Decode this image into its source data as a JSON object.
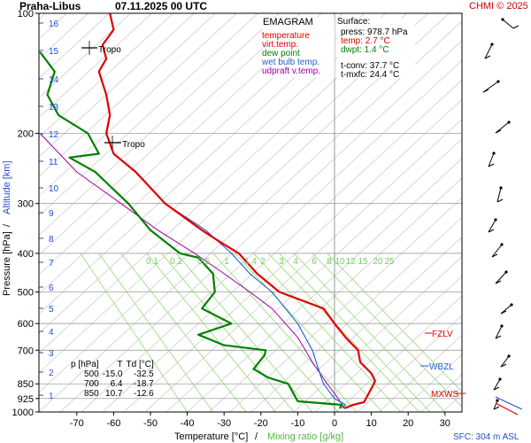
{
  "header": {
    "station": "Praha-Libus",
    "datetime": "07.11.2025 00 UTC",
    "copyright": "CHMI © 2025"
  },
  "legend": {
    "title": "EMAGRAM",
    "items": [
      {
        "label": "temperature",
        "color": "#e00000"
      },
      {
        "label": "virt.temp.",
        "color": "#e00000"
      },
      {
        "label": "dew point",
        "color": "#008000"
      },
      {
        "label": "wet bulb temp.",
        "color": "#1f5fd0"
      },
      {
        "label": "udpraft v.temp.",
        "color": "#a000a0"
      }
    ]
  },
  "surface": {
    "title": "Surface:",
    "press": "press: 978.7 hPa",
    "temp": "temp: 2.7 °C",
    "dwpt": "dwpt: 1.4 °C",
    "tconv": "t-conv: 37.7 °C",
    "tmxfc": "t-mxfc: 24.4 °C"
  },
  "level_table": {
    "headers": [
      "p [hPa]",
      "T",
      "Td [°C]"
    ],
    "rows": [
      [
        "500",
        "-15.0",
        "-32.5"
      ],
      [
        "700",
        "6.4",
        "-18.7"
      ],
      [
        "850",
        "10.7",
        "-12.6"
      ]
    ]
  },
  "markers": {
    "tropo1": "Tropo",
    "tropo2": "Tropo",
    "fzlv": "FZLV",
    "wbzl": "WBZL",
    "mxws": "MXWS"
  },
  "footer": {
    "xlabel_temp": "Temperature [°C]",
    "xlabel_sep": " / ",
    "xlabel_mix": "Mixing ratio [g/kg]",
    "sfc": "SFC: 304 m ASL"
  },
  "axis_labels": {
    "ylabel_pressure": "Pressure [hPa]",
    "ylabel_sep": " / ",
    "ylabel_alt": "Altitude [km]"
  },
  "colors": {
    "temperature": "#e00000",
    "dewpoint": "#008000",
    "wetbulb": "#1f5fd0",
    "parcel": "#a000a0",
    "mixing": "#7ed36b",
    "altitude": "#1f4fd0",
    "header_right": "#cc0000"
  },
  "chart_data": {
    "type": "line",
    "title": "Praha-Libus 07.11.2025 00 UTC",
    "xlabel": "Temperature [°C] / Mixing ratio [g/kg]",
    "ylabel": "Pressure [hPa] / Altitude [km]",
    "xlim": [
      -80,
      30
    ],
    "ylim": [
      1000,
      100
    ],
    "yscale": "log",
    "x_ticks": [
      -70,
      -60,
      -50,
      -40,
      -30,
      -20,
      -10,
      0,
      10,
      20,
      30
    ],
    "y_ticks": [
      100,
      200,
      300,
      400,
      500,
      600,
      700,
      850,
      925,
      1000
    ],
    "altitude_ticks_km": [
      1,
      2,
      3,
      4,
      5,
      6,
      7,
      8,
      9,
      10,
      11,
      12,
      13,
      14,
      15,
      16
    ],
    "mixing_ratio_labels": [
      "0.1",
      "0.2",
      "0.5",
      "1",
      "1.4",
      "2",
      "3",
      "4",
      "6",
      "8",
      "10",
      "12",
      "15",
      "20",
      "25"
    ],
    "series": [
      {
        "name": "temperature",
        "points": [
          [
            2.7,
            978.7
          ],
          [
            5,
            960
          ],
          [
            8,
            945
          ],
          [
            10.7,
            850
          ],
          [
            11,
            835
          ],
          [
            10,
            800
          ],
          [
            7,
            750
          ],
          [
            6.4,
            700
          ],
          [
            3,
            650
          ],
          [
            0,
            600
          ],
          [
            -3,
            550
          ],
          [
            -15,
            500
          ],
          [
            -21,
            450
          ],
          [
            -26,
            400
          ],
          [
            -31,
            375
          ],
          [
            -36,
            350
          ],
          [
            -46,
            300
          ],
          [
            -54,
            250
          ],
          [
            -60,
            225
          ],
          [
            -62,
            200
          ],
          [
            -61,
            180
          ],
          [
            -62,
            160
          ],
          [
            -64,
            140
          ],
          [
            -62,
            130
          ],
          [
            -63,
            120
          ],
          [
            -60,
            110
          ],
          [
            -61,
            100
          ]
        ]
      },
      {
        "name": "dew point",
        "points": [
          [
            1.4,
            978.7
          ],
          [
            2,
            960
          ],
          [
            -10,
            940
          ],
          [
            -12.6,
            850
          ],
          [
            -18,
            820
          ],
          [
            -22,
            780
          ],
          [
            -19,
            720
          ],
          [
            -18.7,
            700
          ],
          [
            -30,
            680
          ],
          [
            -37,
            640
          ],
          [
            -28,
            600
          ],
          [
            -36,
            550
          ],
          [
            -32.5,
            500
          ],
          [
            -33,
            450
          ],
          [
            -37,
            410
          ],
          [
            -42,
            400
          ],
          [
            -50,
            350
          ],
          [
            -56,
            300
          ],
          [
            -65,
            250
          ],
          [
            -72,
            230
          ],
          [
            -64,
            225
          ],
          [
            -67,
            200
          ],
          [
            -75,
            180
          ],
          [
            -78,
            160
          ],
          [
            -76,
            140
          ],
          [
            -80,
            125
          ]
        ]
      },
      {
        "name": "wet bulb temp.",
        "points": [
          [
            2.0,
            978.7
          ],
          [
            3,
            960
          ],
          [
            0,
            925
          ],
          [
            -3,
            850
          ],
          [
            -4,
            800
          ],
          [
            -6,
            700
          ],
          [
            -10,
            600
          ],
          [
            -17,
            500
          ],
          [
            -23,
            450
          ],
          [
            -28,
            400
          ],
          [
            -35,
            350
          ],
          [
            -46,
            300
          ]
        ]
      },
      {
        "name": "udpraft v.temp.",
        "points": [
          [
            2.7,
            978.7
          ],
          [
            1,
            925
          ],
          [
            -2,
            850
          ],
          [
            -6,
            750
          ],
          [
            -10,
            650
          ],
          [
            -17,
            550
          ],
          [
            -23,
            500
          ],
          [
            -30,
            450
          ],
          [
            -38,
            400
          ],
          [
            -48,
            350
          ],
          [
            -58,
            300
          ],
          [
            -70,
            250
          ],
          [
            -80,
            200
          ]
        ]
      }
    ],
    "annotations": [
      "Tropo",
      "Tropo",
      "FZLV",
      "WBZL",
      "MXWS"
    ],
    "grid": true
  }
}
